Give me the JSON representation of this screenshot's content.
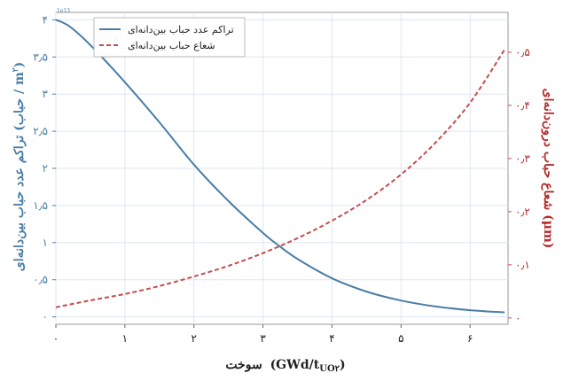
{
  "chart_data": {
    "type": "line",
    "xlabel_prefix": "سوخت",
    "xlabel_unit_main": "(GWd/t",
    "xlabel_unit_sub": "UO۲",
    "xlabel_unit_close": ")",
    "ylabel_left": "تراکم عدد حباب بین‌دانه‌ای (حباب / m",
    "ylabel_left_sup": "۲",
    "ylabel_left_close": ")",
    "ylabel_right": "شعاع حباب درون‌دانه‌ای (μm)",
    "left_axis_multiplier": "1e13",
    "xlim": [
      0,
      6.55
    ],
    "ylim_left": [
      -0.1,
      4.1
    ],
    "ylim_right": [
      -0.012,
      0.575
    ],
    "x_ticks": [
      {
        "v": 0,
        "label": "۰"
      },
      {
        "v": 1,
        "label": "۱"
      },
      {
        "v": 2,
        "label": "۲"
      },
      {
        "v": 3,
        "label": "۳"
      },
      {
        "v": 4,
        "label": "۴"
      },
      {
        "v": 5,
        "label": "۵"
      },
      {
        "v": 6,
        "label": "۶"
      }
    ],
    "y_left_ticks": [
      {
        "v": 0,
        "label": "۰"
      },
      {
        "v": 0.5,
        "label": "۰٫۵"
      },
      {
        "v": 1,
        "label": "۱"
      },
      {
        "v": 1.5,
        "label": "۱٫۵"
      },
      {
        "v": 2,
        "label": "۲"
      },
      {
        "v": 2.5,
        "label": "۲٫۵"
      },
      {
        "v": 3,
        "label": "۳"
      },
      {
        "v": 3.5,
        "label": "۳٫۵"
      },
      {
        "v": 4,
        "label": "۴"
      }
    ],
    "y_right_ticks": [
      {
        "v": 0,
        "label": "۰"
      },
      {
        "v": 0.1,
        "label": "۰٫۱"
      },
      {
        "v": 0.2,
        "label": "۰٫۲"
      },
      {
        "v": 0.3,
        "label": "۰٫۳"
      },
      {
        "v": 0.4,
        "label": "۰٫۴"
      },
      {
        "v": 0.5,
        "label": "۰٫۵"
      }
    ],
    "grid": true,
    "legend_position": "top-left",
    "series": [
      {
        "name": "تراکم عدد حباب بین‌دانه‌ای",
        "axis": "left",
        "style": "solid",
        "color": "#4a7ea6",
        "x": [
          0,
          0.2,
          0.5,
          1.0,
          1.5,
          2.0,
          2.5,
          3.0,
          3.2,
          3.5,
          4.0,
          4.5,
          5.0,
          5.5,
          6.0,
          6.5
        ],
        "y": [
          4.0,
          3.91,
          3.66,
          3.16,
          2.62,
          2.05,
          1.56,
          1.13,
          0.98,
          0.78,
          0.52,
          0.34,
          0.22,
          0.14,
          0.09,
          0.06
        ]
      },
      {
        "name": "شعاع حباب بین‌دانه‌ای",
        "axis": "right",
        "style": "dashed",
        "color": "#c44e4e",
        "x": [
          0,
          0.5,
          1.0,
          1.5,
          2.0,
          2.5,
          3.0,
          3.5,
          4.0,
          4.5,
          5.0,
          5.5,
          6.0,
          6.5
        ],
        "y": [
          0.02,
          0.033,
          0.045,
          0.06,
          0.078,
          0.098,
          0.122,
          0.15,
          0.183,
          0.222,
          0.27,
          0.33,
          0.405,
          0.505
        ]
      }
    ]
  }
}
